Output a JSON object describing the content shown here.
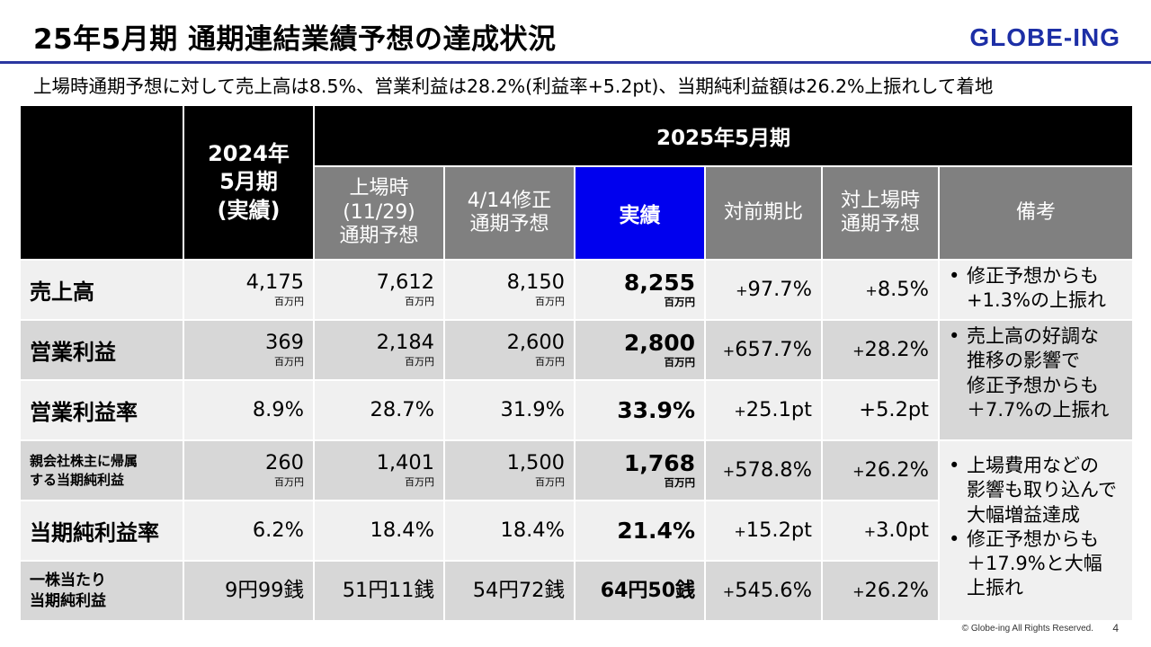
{
  "title": "25年5月期 通期連結業績予想の達成状況",
  "logo": "GLOBE-ING",
  "subtitle": "上場時通期予想に対して売上高は8.5%、営業利益は28.2%(利益率+5.2pt)、当期純利益額は26.2%上振れして着地",
  "header": {
    "prev_year_lines": [
      "2024年",
      "5月期",
      "(実績)"
    ],
    "fy_group": "2025年5月期",
    "ipo_forecast_lines": [
      "上場時",
      "(11/29)",
      "通期予想"
    ],
    "revised_forecast_lines": [
      "4/14修正",
      "通期予想"
    ],
    "actual": "実績",
    "yoy": "対前期比",
    "vs_ipo_lines": [
      "対上場時",
      "通期予想"
    ],
    "remarks": "備考"
  },
  "unit": "百万円",
  "rows": [
    {
      "label_lines": [
        "売上高"
      ],
      "prev": "4,175",
      "ipo": "7,612",
      "revised": "8,150",
      "actual": "8,255",
      "yoy_sign": "+",
      "yoy": "97.7%",
      "vs_sign": "+",
      "vs": "8.5%"
    },
    {
      "label_lines": [
        "営業利益"
      ],
      "prev": "369",
      "ipo": "2,184",
      "revised": "2,600",
      "actual": "2,800",
      "yoy_sign": "+",
      "yoy": "657.7%",
      "vs_sign": "+",
      "vs": "28.2%"
    },
    {
      "label_lines": [
        "営業利益率"
      ],
      "prev": "8.9%",
      "ipo": "28.7%",
      "revised": "31.9%",
      "actual": "33.9%",
      "yoy_sign": "+",
      "yoy": "25.1pt",
      "vs_sign": "",
      "vs": "+5.2pt"
    },
    {
      "label_lines": [
        "親会社株主に帰属",
        "する当期純利益"
      ],
      "prev": "260",
      "ipo": "1,401",
      "revised": "1,500",
      "actual": "1,768",
      "yoy_sign": "+",
      "yoy": "578.8%",
      "vs_sign": "+",
      "vs": "26.2%"
    },
    {
      "label_lines": [
        "当期純利益率"
      ],
      "prev": "6.2%",
      "ipo": "18.4%",
      "revised": "18.4%",
      "actual": "21.4%",
      "yoy_sign": "+",
      "yoy": "15.2pt",
      "vs_sign": "+",
      "vs": "3.0pt"
    },
    {
      "label_lines": [
        "一株当たり",
        "当期純利益"
      ],
      "prev": "9円99銭",
      "ipo": "51円11銭",
      "revised": "54円72銭",
      "actual": "64円50銭",
      "yoy_sign": "+",
      "yoy": "545.6%",
      "vs_sign": "+",
      "vs": "26.2%"
    }
  ],
  "remarks": {
    "sales": [
      "修正予想からも\n+1.3%の上振れ"
    ],
    "operating": [
      "売上高の好調な\n推移の影響で\n修正予想からも\n＋7.7%の上振れ"
    ],
    "net": [
      "上場費用などの\n影響も取り込んで\n大幅増益達成",
      "修正予想からも\n＋17.9%と大幅\n上振れ"
    ]
  },
  "footer": "© Globe-ing All Rights Reserved.",
  "page_number": "4",
  "colors": {
    "brand": "#1d2fa6",
    "actual_header": "#0000ee",
    "header_gray": "#808080"
  }
}
